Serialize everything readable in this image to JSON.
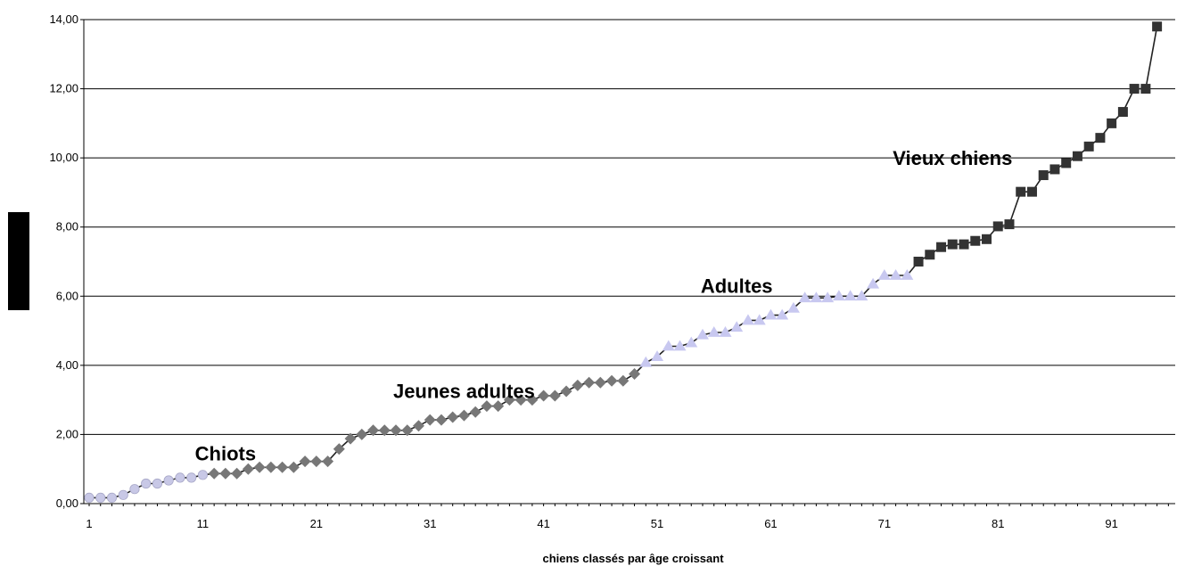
{
  "chart_data": {
    "type": "line",
    "title": "",
    "xlabel": "chiens classés par âge croissant",
    "ylabel": "",
    "ylim": [
      0,
      14
    ],
    "xlim": [
      1,
      96
    ],
    "yticks": [
      0,
      2,
      4,
      6,
      8,
      10,
      12,
      14
    ],
    "ytick_labels": [
      "0,00",
      "2,00",
      "4,00",
      "6,00",
      "8,00",
      "10,00",
      "12,00",
      "14,00"
    ],
    "xticks": [
      1,
      11,
      21,
      31,
      41,
      51,
      61,
      71,
      81,
      91
    ],
    "xtick_labels": [
      "1",
      "11",
      "21",
      "31",
      "41",
      "51",
      "61",
      "71",
      "81",
      "91"
    ],
    "grid": "horizontal",
    "legend": "none",
    "annotations": [
      {
        "text": "Chiots",
        "x": 13,
        "y": 1.25
      },
      {
        "text": "Jeunes adultes",
        "x": 34,
        "y": 3.05
      },
      {
        "text": "Adultes",
        "x": 58,
        "y": 6.1
      },
      {
        "text": "Vieux chiens",
        "x": 77,
        "y": 9.8
      }
    ],
    "series": [
      {
        "marker": "circle",
        "color": "#c8c8e6",
        "x": [
          1,
          2,
          3,
          4,
          5,
          6,
          7,
          8,
          9,
          10,
          11
        ],
        "values": [
          0.17,
          0.17,
          0.17,
          0.25,
          0.42,
          0.58,
          0.58,
          0.67,
          0.75,
          0.75,
          0.83
        ]
      },
      {
        "marker": "diamond",
        "color": "#777777",
        "x": [
          12,
          13,
          14,
          15,
          16,
          17,
          18,
          19,
          20,
          21,
          22,
          23,
          24,
          25,
          26,
          27,
          28,
          29,
          30,
          31,
          32,
          33,
          34,
          35,
          36,
          37,
          38,
          39,
          40,
          41,
          42,
          43,
          44,
          45,
          46,
          47,
          48,
          49
        ],
        "values": [
          0.87,
          0.87,
          0.87,
          1.0,
          1.05,
          1.05,
          1.05,
          1.05,
          1.22,
          1.22,
          1.22,
          1.58,
          1.88,
          2.0,
          2.12,
          2.12,
          2.12,
          2.12,
          2.25,
          2.42,
          2.42,
          2.5,
          2.55,
          2.65,
          2.82,
          2.82,
          3.0,
          3.0,
          3.0,
          3.12,
          3.12,
          3.25,
          3.42,
          3.5,
          3.5,
          3.55,
          3.55,
          3.75
        ]
      },
      {
        "marker": "triangle",
        "color": "#c8c8f0",
        "x": [
          50,
          51,
          52,
          53,
          54,
          55,
          56,
          57,
          58,
          59,
          60,
          61,
          62,
          63,
          64,
          65,
          66,
          67,
          68,
          69,
          70,
          71,
          72,
          73
        ],
        "values": [
          4.08,
          4.25,
          4.55,
          4.55,
          4.65,
          4.88,
          4.95,
          4.95,
          5.1,
          5.3,
          5.3,
          5.45,
          5.45,
          5.65,
          5.95,
          5.95,
          5.95,
          6.0,
          6.0,
          6.0,
          6.35,
          6.6,
          6.6,
          6.6
        ]
      },
      {
        "marker": "square",
        "color": "#333333",
        "x": [
          74,
          75,
          76,
          77,
          78,
          79,
          80,
          81,
          82,
          83,
          84,
          85,
          86,
          87,
          88,
          89,
          90,
          91,
          92,
          93,
          94
        ],
        "values": [
          7.0,
          7.2,
          7.42,
          7.5,
          7.5,
          7.6,
          7.65,
          8.02,
          8.08,
          9.02,
          9.02,
          9.5,
          9.67,
          9.85,
          10.05,
          10.33,
          10.58,
          11.0,
          11.33,
          12.0,
          12.0
        ]
      },
      {
        "marker": "square",
        "color": "#333333",
        "x": [
          95
        ],
        "values": [
          13.8
        ]
      }
    ]
  }
}
